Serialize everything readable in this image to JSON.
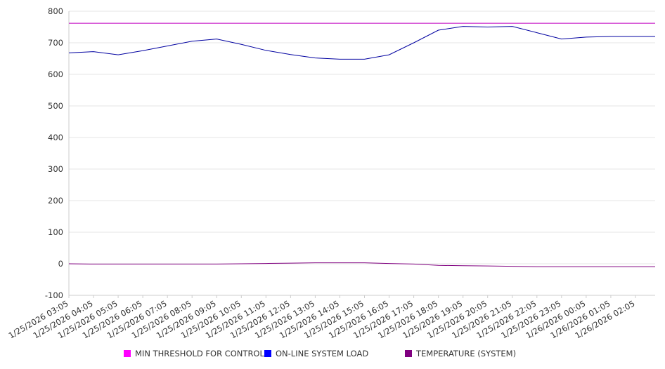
{
  "chart_data": {
    "type": "line",
    "title": "",
    "xlabel": "",
    "ylabel": "",
    "ylim": [
      -100,
      800
    ],
    "yticks": [
      -100,
      0,
      100,
      200,
      300,
      400,
      500,
      600,
      700,
      800
    ],
    "grid": true,
    "legend_position": "bottom",
    "categories": [
      "1/25/2026 03:05",
      "1/25/2026 04:05",
      "1/25/2026 05:05",
      "1/25/2026 06:05",
      "1/25/2026 07:05",
      "1/25/2026 08:05",
      "1/25/2026 09:05",
      "1/25/2026 10:05",
      "1/25/2026 11:05",
      "1/25/2026 12:05",
      "1/25/2026 13:05",
      "1/25/2026 14:05",
      "1/25/2026 15:05",
      "1/25/2026 16:05",
      "1/25/2026 17:05",
      "1/25/2026 18:05",
      "1/25/2026 19:05",
      "1/25/2026 20:05",
      "1/25/2026 21:05",
      "1/25/2026 22:05",
      "1/25/2026 23:05",
      "1/26/2026 00:05",
      "1/26/2026 01:05",
      "1/26/2026 02:05"
    ],
    "series": [
      {
        "name": "MIN THRESHOLD FOR CONTROL",
        "color": "#c000c0",
        "legend_color": "#ff00ff",
        "values": [
          762,
          762,
          762,
          762,
          762,
          762,
          762,
          762,
          762,
          762,
          762,
          762,
          762,
          762,
          762,
          762,
          762,
          762,
          762,
          762,
          762,
          762,
          762,
          762
        ]
      },
      {
        "name": "ON-LINE SYSTEM LOAD",
        "color": "#0000a0",
        "legend_color": "#0000ff",
        "values": [
          668,
          672,
          662,
          675,
          690,
          705,
          712,
          695,
          676,
          663,
          652,
          648,
          648,
          662,
          700,
          740,
          752,
          750,
          752,
          732,
          712,
          718,
          720,
          720
        ]
      },
      {
        "name": "TEMPERATURE (SYSTEM)",
        "color": "#800080",
        "legend_color": "#800080",
        "values": [
          0,
          -1,
          -1,
          -1,
          -1,
          -1,
          -1,
          0,
          1,
          2,
          3,
          3,
          3,
          1,
          -1,
          -5,
          -6,
          -7,
          -8,
          -9,
          -9,
          -9,
          -9,
          -9
        ]
      }
    ]
  }
}
